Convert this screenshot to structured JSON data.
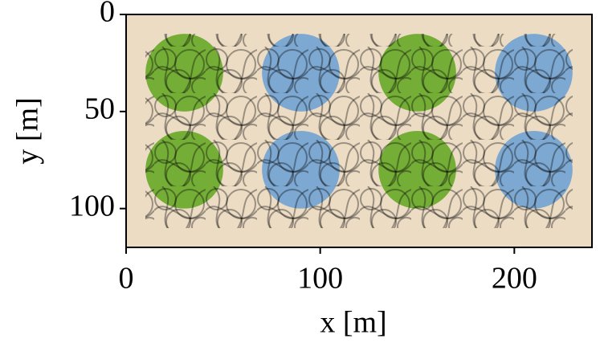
{
  "chart_data": {
    "type": "bubble",
    "xlabel": "x [m]",
    "ylabel": "y [m]",
    "xlim": [
      0,
      240
    ],
    "ylim": [
      0,
      120
    ],
    "y_inverted": true,
    "xticks": [
      0,
      100,
      200
    ],
    "yticks": [
      0,
      50,
      100
    ],
    "background": "#ecdcc4",
    "series": [
      {
        "color": "#5fa61e",
        "x": [
          30,
          150,
          30,
          150
        ],
        "values": [
          30,
          30,
          80,
          80
        ],
        "sizes": [
          20,
          20,
          20,
          20
        ]
      },
      {
        "color": "#6a9fd4",
        "x": [
          90,
          210,
          90,
          210
        ],
        "values": [
          30,
          30,
          80,
          80
        ],
        "sizes": [
          20,
          20,
          20,
          20
        ]
      }
    ]
  }
}
